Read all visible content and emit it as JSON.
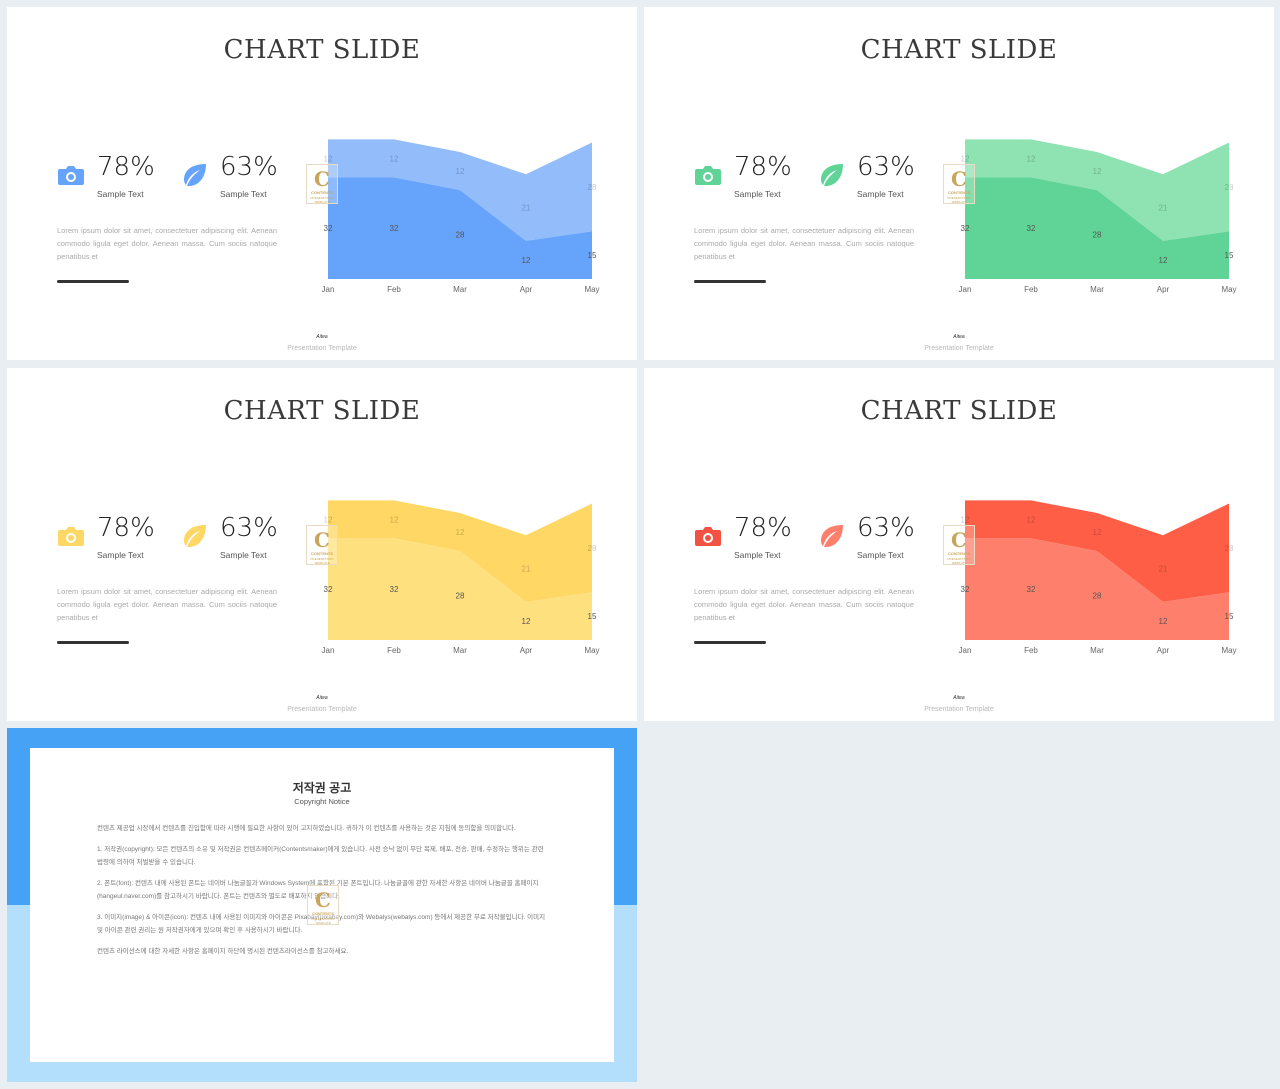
{
  "colors": {
    "background": "#e8eef2",
    "blue_light": "#93bcfb",
    "blue_dark": "#66a3fb",
    "green_light": "#8fe2b2",
    "green_dark": "#5fd496",
    "yellow_light": "#ffd765",
    "yellow_dark": "#ffe07f",
    "red_light": "#ff5e46",
    "red_dark": "#ff7f6d"
  },
  "slides": [
    {
      "title": "CHART SLIDE",
      "theme": "blue",
      "icon_color": "#66a3fb",
      "stat1": {
        "value": "78%",
        "label": "Sample Text",
        "icon": "camera-icon"
      },
      "stat2": {
        "value": "63%",
        "label": "Sample Text",
        "icon": "leaf-icon"
      },
      "lorem": "Lorem ipsum dolor sit amet, consectetuer adipiscing elit. Aenean commodo ligula eget dolor. Aenean massa. Cum sociis natoque penatibus et",
      "footer_brand": "Aitea",
      "footer_sub": "Presentation Template"
    },
    {
      "title": "CHART SLIDE",
      "theme": "green",
      "icon_color": "#5fd496",
      "stat1": {
        "value": "78%",
        "label": "Sample Text",
        "icon": "camera-icon"
      },
      "stat2": {
        "value": "63%",
        "label": "Sample Text",
        "icon": "leaf-icon"
      },
      "lorem": "Lorem ipsum dolor sit amet, consectetuer adipiscing elit. Aenean commodo ligula eget dolor. Aenean massa. Cum sociis natoque penatibus et",
      "footer_brand": "Aitea",
      "footer_sub": "Presentation Template"
    },
    {
      "title": "CHART SLIDE",
      "theme": "yellow",
      "icon_color": "#ffd765",
      "stat1": {
        "value": "78%",
        "label": "Sample Text",
        "icon": "camera-icon"
      },
      "stat2": {
        "value": "63%",
        "label": "Sample Text",
        "icon": "leaf-icon"
      },
      "lorem": "Lorem ipsum dolor sit amet, consectetuer adipiscing elit. Aenean commodo ligula eget dolor. Aenean massa. Cum sociis natoque penatibus et",
      "footer_brand": "Aitea",
      "footer_sub": "Presentation Template"
    },
    {
      "title": "CHART SLIDE",
      "theme": "red",
      "icon_color": "#f25243",
      "stat1": {
        "value": "78%",
        "label": "Sample Text",
        "icon": "camera-icon"
      },
      "stat2": {
        "value": "63%",
        "label": "Sample Text",
        "icon": "leaf-icon"
      },
      "lorem": "Lorem ipsum dolor sit amet, consectetuer adipiscing elit. Aenean commodo ligula eget dolor. Aenean massa. Cum sociis natoque penatibus et",
      "footer_brand": "Aitea",
      "footer_sub": "Presentation Template"
    }
  ],
  "chart_data": {
    "type": "area",
    "stacked": true,
    "categories": [
      "Jan",
      "Feb",
      "Mar",
      "Apr",
      "May"
    ],
    "series": [
      {
        "values": [
          32,
          32,
          28,
          12,
          15
        ]
      },
      {
        "values": [
          12,
          12,
          12,
          21,
          28
        ]
      }
    ],
    "ylim": [
      0,
      46
    ],
    "grid": false,
    "legend": "none"
  },
  "logo": {
    "letter": "C",
    "text": "CONTENTS",
    "subtext": "PRESENTATION TEMPLATE"
  },
  "notice": {
    "title": "저작권 공고",
    "subtitle": "Copyright Notice",
    "paragraphs": [
      "컨텐츠 제공업 시장에서 컨텐츠를 진입함에 따라 시행에 필요한 사항이 있어 고지하였습니다. 귀하가 이 컨텐츠를 사용하는 것은 지침에 동의함을 의미합니다.",
      "1. 저작권(copyright): 모든 컨텐츠의 소유 및 저작권은 컨텐츠메이커(Contentsmaker)에게 있습니다. 사전 승낙 없이 무단 복제, 배포, 전송, 판매, 수정하는 행위는 관련 법령에 의하여 처벌받을 수 있습니다.",
      "2. 폰트(font): 컨텐츠 내에 사용된 폰트는 네이버 나눔글꼴과 Windows System에 포함된 기본 폰트입니다. 나눔글꼴에 관한 자세한 사항은 네이버 나눔글꼴 홈페이지(hangeul.naver.com)를 참고하시기 바랍니다. 폰트는 컨텐츠와 별도로 배포하지 않습니다.",
      "3. 이미지(image) & 아이콘(icon): 컨텐츠 내에 사용된 이미지와 아이콘은 Pixabay(pixabay.com)와 Webalys(webalys.com) 등에서 제공한 무료 저작물입니다. 이미지 및 아이콘 관련 권리는 원 저작권자에게 있으며 확인 후 사용하시기 바랍니다.",
      "컨텐츠 라이선스에 대한 자세한 사항은 홈페이지 하단에 명시된 컨텐츠라이선스를 참고하세요."
    ]
  }
}
